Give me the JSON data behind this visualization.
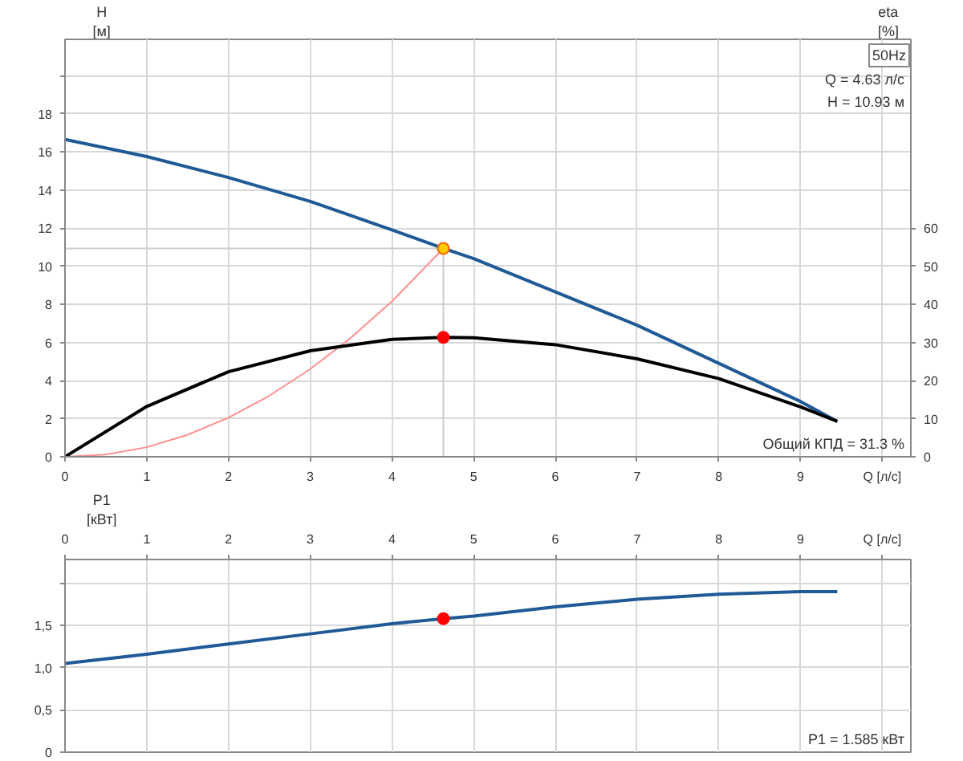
{
  "chart_data": [
    {
      "type": "line",
      "ylabel": "H\n[м]",
      "y2label": "eta\n[%]",
      "xlim": [
        0,
        10.35
      ],
      "xticks": [
        0,
        1,
        2,
        3,
        4,
        5,
        6,
        7,
        8,
        9,
        {
          "value": 10,
          "label": "Q [л/с]"
        }
      ],
      "ylim": [
        0,
        21.9
      ],
      "yticks": [
        0,
        2,
        4,
        6,
        8,
        10,
        12,
        14,
        16,
        18,
        {
          "value": 20,
          "label": null
        }
      ],
      "y2lim": [
        0,
        109.5
      ],
      "y2ticks": [
        0,
        10,
        20,
        30,
        40,
        50,
        60
      ],
      "grid": true,
      "marker": "none",
      "annotations": [
        "50Hz",
        "Q = 4.63 л/с",
        "H = 10.93 м",
        "Общий КПД = 31.3 %"
      ],
      "series": [
        {
          "color": "#cccccc",
          "x": [
            0,
            4.63,
            4.63
          ],
          "values": [
            10.93,
            10.93,
            0
          ]
        },
        {
          "color": "#ff8f8f",
          "x": [
            0,
            0.5,
            1,
            1.5,
            2,
            2.5,
            3,
            3.5,
            4,
            4.63
          ],
          "values": [
            0,
            0.12,
            0.5,
            1.15,
            2.05,
            3.2,
            4.6,
            6.25,
            8.15,
            10.93
          ]
        },
        {
          "color": "#1f5a96",
          "x": [
            0,
            1,
            2,
            3,
            4,
            4.63,
            5,
            6,
            7,
            8,
            9,
            9.45
          ],
          "values": [
            16.65,
            15.75,
            14.65,
            13.4,
            11.9,
            10.93,
            10.4,
            8.65,
            6.9,
            4.9,
            2.9,
            1.85
          ]
        },
        {
          "color": "#000000",
          "axis": "y2",
          "x": [
            0,
            1,
            2,
            3,
            4,
            4.63,
            5,
            6,
            7,
            8,
            9,
            9.45
          ],
          "values": [
            0,
            13.2,
            22.3,
            27.8,
            30.8,
            31.3,
            31.2,
            29.4,
            25.7,
            20.5,
            13.1,
            9.3
          ]
        },
        {
          "marker": "circle",
          "color": "#ffcc00",
          "x": [
            4.63
          ],
          "values": [
            10.93
          ]
        },
        {
          "marker": "circle",
          "color": "#ff0000",
          "axis": "y2",
          "x": [
            4.63
          ],
          "values": [
            31.3
          ]
        }
      ]
    },
    {
      "type": "line",
      "ylabel": "P1\n[кВт]",
      "xlim": [
        0,
        10.35
      ],
      "xticks": [
        0,
        1,
        2,
        3,
        4,
        5,
        6,
        7,
        8,
        9,
        {
          "value": 10,
          "label": "Q [л/с]"
        }
      ],
      "ylim": [
        0,
        2.28
      ],
      "yticks": [
        0,
        {
          "value": 0.5,
          "label": "0,5"
        },
        {
          "value": 1,
          "label": "1,0"
        },
        {
          "value": 1.5,
          "label": "1,5"
        },
        {
          "value": 2,
          "label": null
        }
      ],
      "grid": true,
      "marker": "none",
      "annotations": [
        "P1 = 1.585 кВт"
      ],
      "series": [
        {
          "color": "#1f5a96",
          "x": [
            0,
            1,
            2,
            3,
            4,
            4.63,
            5,
            6,
            7,
            8,
            9,
            9.45
          ],
          "values": [
            1.05,
            1.16,
            1.28,
            1.4,
            1.52,
            1.58,
            1.61,
            1.72,
            1.81,
            1.87,
            1.9,
            1.9
          ]
        },
        {
          "marker": "circle",
          "color": "#ff0000",
          "x": [
            4.63
          ],
          "values": [
            1.58
          ]
        }
      ]
    }
  ]
}
